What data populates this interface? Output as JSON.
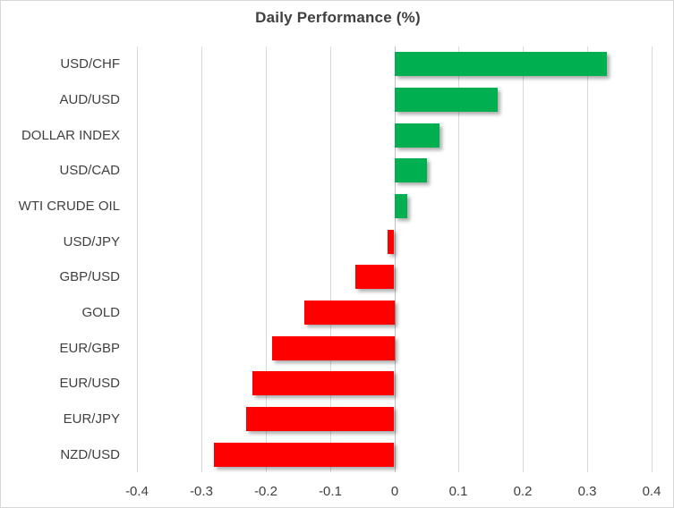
{
  "chart_data": {
    "type": "bar",
    "orientation": "horizontal",
    "title": "Daily Performance (%)",
    "categories": [
      "USD/CHF",
      "AUD/USD",
      "DOLLAR INDEX",
      "USD/CAD",
      "WTI CRUDE OIL",
      "USD/JPY",
      "GBP/USD",
      "GOLD",
      "EUR/GBP",
      "EUR/USD",
      "EUR/JPY",
      "NZD/USD"
    ],
    "values": [
      0.33,
      0.16,
      0.07,
      0.05,
      0.02,
      -0.01,
      -0.06,
      -0.14,
      -0.19,
      -0.22,
      -0.23,
      -0.28
    ],
    "xlim": [
      -0.4,
      0.4
    ],
    "xticks": [
      -0.4,
      -0.3,
      -0.2,
      -0.1,
      0,
      0.1,
      0.2,
      0.3,
      0.4
    ],
    "xtick_labels": [
      "-0.4",
      "-0.3",
      "-0.2",
      "-0.1",
      "0",
      "0.1",
      "0.2",
      "0.3",
      "0.4"
    ],
    "grid": true,
    "legend": "none",
    "positive_color": "#00B050",
    "negative_color": "#FF0000",
    "gridline_color": "#D9D9D9",
    "zero_axis_color": "#BFBFBF",
    "text_color": "#404040"
  }
}
